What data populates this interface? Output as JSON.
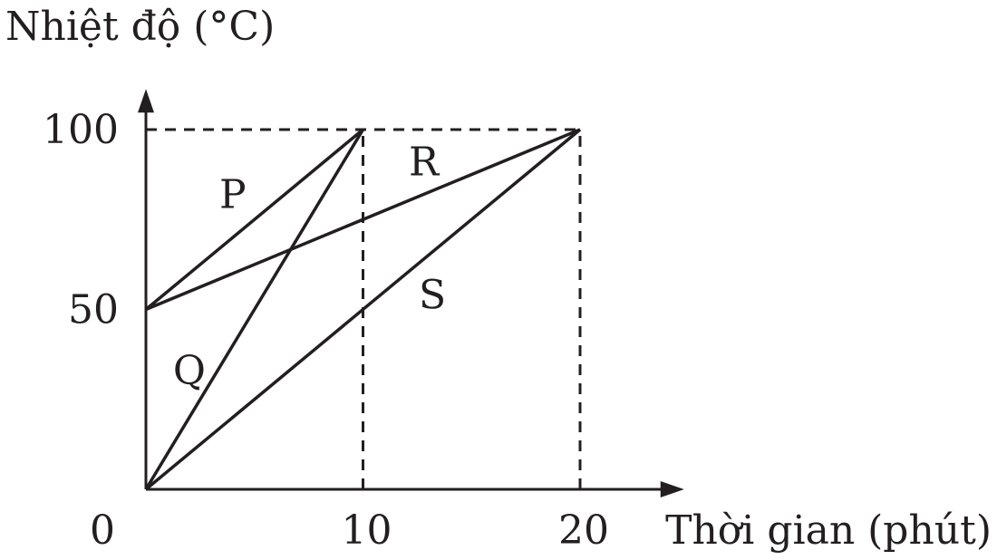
{
  "chart_data": {
    "type": "line",
    "xlabel": "Thời gian (phút)",
    "ylabel": "Nhiệt độ (°C)",
    "xlim": [
      0,
      25
    ],
    "ylim": [
      0,
      110
    ],
    "xticks": [
      0,
      10,
      20
    ],
    "xtick_labels": [
      "0",
      "10",
      "20"
    ],
    "yticks": [
      50,
      100
    ],
    "ytick_labels": [
      "50",
      "100"
    ],
    "guides": [
      {
        "from": [
          0,
          100
        ],
        "to": [
          20,
          100
        ]
      },
      {
        "from": [
          10,
          0
        ],
        "to": [
          10,
          100
        ]
      },
      {
        "from": [
          20,
          0
        ],
        "to": [
          20,
          100
        ]
      }
    ],
    "series": [
      {
        "name": "P",
        "x": [
          0,
          10
        ],
        "y": [
          50,
          100
        ],
        "label_at": [
          4,
          82
        ]
      },
      {
        "name": "Q",
        "x": [
          0,
          10
        ],
        "y": [
          0,
          100
        ],
        "label_at": [
          2,
          33
        ]
      },
      {
        "name": "R",
        "x": [
          0,
          20
        ],
        "y": [
          50,
          100
        ],
        "label_at": [
          12.8,
          91
        ]
      },
      {
        "name": "S",
        "x": [
          0,
          20
        ],
        "y": [
          0,
          100
        ],
        "label_at": [
          13.2,
          54
        ]
      }
    ],
    "line_color": "#231f20",
    "grid": false,
    "legend": "none"
  }
}
